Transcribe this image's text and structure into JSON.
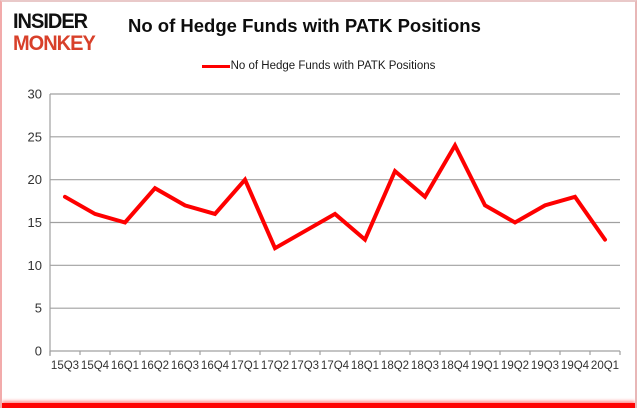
{
  "header": {
    "logo_line1": "INSIDER",
    "logo_line2": "MONKEY",
    "title": "No of Hedge Funds with PATK Positions"
  },
  "legend": {
    "label": "No of Hedge Funds with PATK Positions"
  },
  "chart_data": {
    "type": "line",
    "title": "No of Hedge Funds with PATK Positions",
    "categories": [
      "15Q3",
      "15Q4",
      "16Q1",
      "16Q2",
      "16Q3",
      "16Q4",
      "17Q1",
      "17Q2",
      "17Q3",
      "17Q4",
      "18Q1",
      "18Q2",
      "18Q3",
      "18Q4",
      "19Q1",
      "19Q2",
      "19Q3",
      "19Q4",
      "20Q1"
    ],
    "series": [
      {
        "name": "No of Hedge Funds with PATK Positions",
        "values": [
          18,
          16,
          15,
          19,
          17,
          16,
          20,
          12,
          14,
          16,
          13,
          21,
          18,
          24,
          17,
          15,
          17,
          18,
          13
        ]
      }
    ],
    "xlabel": "",
    "ylabel": "",
    "ylim": [
      0,
      30
    ],
    "yticks": [
      0,
      5,
      10,
      15,
      20,
      25,
      30
    ],
    "grid": true,
    "legend_position": "top"
  },
  "colors": {
    "line": "#fe0000",
    "grid": "#a0a0a0",
    "axis_text": "#333333",
    "logo_red": "#d8402a",
    "border_bottom": "#fe0303"
  }
}
